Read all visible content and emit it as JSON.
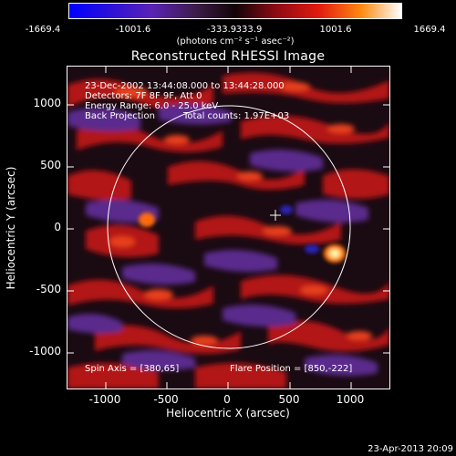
{
  "colorbar": {
    "ticks": [
      "-1669.4",
      "-1001.6",
      "-333.9",
      "333.9",
      "1001.6",
      "1669.4"
    ],
    "unit_text": "(photons cm⁻² s⁻¹ asec⁻²)"
  },
  "title": "Reconstructed RHESSI Image",
  "annotations": {
    "line1": "23-Dec-2002 13:44:08.000 to 13:44:28.000",
    "line2": "Detectors: 7F 8F 9F, Att 0",
    "line3": "Energy Range: 6.0 - 25.0 keV",
    "line4_left": "Back Projection",
    "line4_right": "Total counts: 1.97E+03",
    "spin_axis": "Spin Axis = [380,65]",
    "flare_position": "Flare Position = [850,-222]"
  },
  "axes": {
    "xlabel": "Heliocentric X (arcsec)",
    "ylabel": "Heliocentric Y (arcsec)",
    "xticks": [
      "-1000",
      "-500",
      "0",
      "500",
      "1000"
    ],
    "yticks": [
      "1000",
      "500",
      "0",
      "-500",
      "-1000"
    ]
  },
  "timestamp": "23-Apr-2013 20:09",
  "colors": {
    "frame": "#ffffff",
    "background": "#000000"
  }
}
